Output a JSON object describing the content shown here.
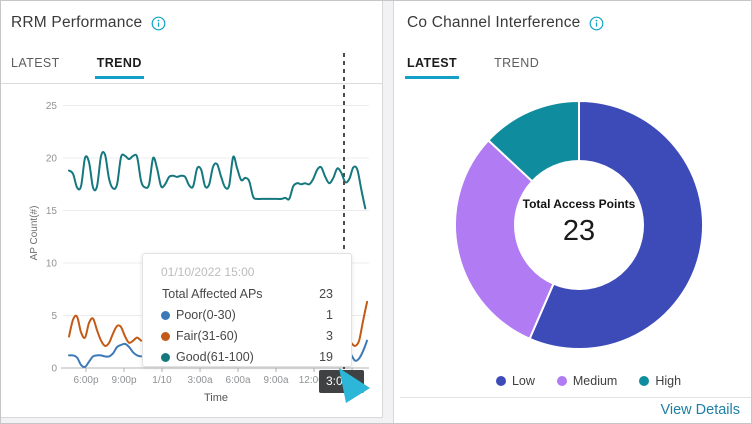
{
  "left_panel": {
    "title": "RRM Performance",
    "tabs": [
      {
        "label": "LATEST",
        "active": false
      },
      {
        "label": "TREND",
        "active": true
      }
    ],
    "tooltip": {
      "timestamp": "01/10/2022 15:00",
      "rows": [
        {
          "label": "Total Affected APs",
          "value": "23",
          "color": null
        },
        {
          "label": "Poor(0-30)",
          "value": "1",
          "color": "#3b79b8"
        },
        {
          "label": "Fair(31-60)",
          "value": "3",
          "color": "#c35a17"
        },
        {
          "label": "Good(61-100)",
          "value": "19",
          "color": "#15787e"
        }
      ]
    },
    "crosshair_time_label": "3:00p"
  },
  "right_panel": {
    "title": "Co Channel Interference",
    "tabs": [
      {
        "label": "LATEST",
        "active": true
      },
      {
        "label": "TREND",
        "active": false
      }
    ],
    "center_label": "Total Access Points",
    "center_value": "23",
    "legend": [
      {
        "label": "Low",
        "color": "#3d4bb8"
      },
      {
        "label": "Medium",
        "color": "#b17bf3"
      },
      {
        "label": "High",
        "color": "#0f8d9e"
      }
    ],
    "view_details": "View Details"
  },
  "chart_data": [
    {
      "type": "line",
      "title": "RRM Performance Trend",
      "xlabel": "Time",
      "ylabel": "AP Count(#)",
      "ylim": [
        0,
        25
      ],
      "yticks": [
        0,
        5,
        10,
        15,
        20,
        25
      ],
      "xticks": [
        "6:00p",
        "9:00p",
        "1/10",
        "3:00a",
        "6:00a",
        "9:00a",
        "12:00p",
        "3:00p"
      ],
      "xtick_step_hours": 3,
      "t_unit": "hours after 6:00p 01/09/2022",
      "grid": true,
      "series": [
        {
          "name": "Poor(0-30)",
          "color": "#3b79b8",
          "segments": [
            {
              "t_start": -1.34,
              "t_step": 0.316,
              "values": [
                1.2,
                1.2,
                1.0,
                0.3,
                0.1,
                0.6,
                1.1,
                1.2,
                1.2,
                1.1,
                1.1,
                1.4,
                2.0,
                2.2,
                2.3,
                2.0,
                1.5,
                1.2,
                1.1
              ]
            },
            {
              "t_start": 20.6,
              "t_step": 0.316,
              "values": [
                1.9,
                1.3,
                0.7,
                0.9,
                1.6,
                2.6
              ]
            }
          ]
        },
        {
          "name": "Fair(31-60)",
          "color": "#c35a17",
          "segments": [
            {
              "t_start": -1.34,
              "t_step": 0.316,
              "values": [
                3.0,
                4.6,
                4.9,
                3.4,
                2.9,
                4.3,
                4.7,
                3.6,
                2.6,
                2.1,
                2.4,
                3.3,
                4.0,
                3.9,
                3.0,
                2.4,
                2.6,
                2.9,
                2.6
              ]
            },
            {
              "t_start": 20.92,
              "t_step": 0.316,
              "values": [
                2.4,
                2.1,
                2.6,
                4.5,
                6.3
              ]
            }
          ]
        },
        {
          "name": "Good(61-100)",
          "color": "#15787e",
          "segments": [
            {
              "t_start": -1.34,
              "t_step": 0.316,
              "values": [
                18.8,
                18.5,
                17.2,
                17.3,
                20.0,
                19.6,
                17.2,
                17.3,
                20.2,
                20.3,
                18.0,
                17.1,
                17.5,
                20.1,
                20.2,
                19.9,
                20.2,
                20.1,
                17.8,
                17.2,
                17.5,
                20.0,
                19.0,
                17.3,
                17.5,
                18.2,
                18.3,
                18.2,
                18.3,
                18.2,
                17.4,
                17.3,
                19.0,
                18.9,
                17.3,
                17.5,
                19.2,
                19.4,
                18.2,
                17.2,
                17.4,
                20.1,
                19.0,
                17.9,
                18.1,
                17.8,
                16.3,
                16.1,
                16.1,
                16.1,
                16.1,
                16.1,
                16.1,
                16.1,
                16.2,
                16.1,
                17.3,
                17.6,
                17.5,
                17.6,
                17.5,
                18.0,
                18.9,
                19.1,
                18.2,
                17.6,
                18.1,
                19.0,
                18.6,
                17.7,
                18.0,
                19.1,
                18.9,
                17.0,
                15.2
              ]
            }
          ]
        }
      ],
      "crosshair": {
        "time_label": "3:00p",
        "tooltip_timestamp": "01/10/2022 15:00",
        "total_affected_aps": 23
      }
    },
    {
      "type": "pie",
      "subtype": "donut",
      "title": "Co Channel Interference - Latest",
      "labels": [
        "Low",
        "Medium",
        "High"
      ],
      "values": [
        13,
        7,
        3
      ],
      "colors": [
        "#3d4bb8",
        "#b17bf3",
        "#0f8d9e"
      ],
      "total": 23,
      "center_label": "Total Access Points",
      "legend_position": "bottom"
    }
  ]
}
